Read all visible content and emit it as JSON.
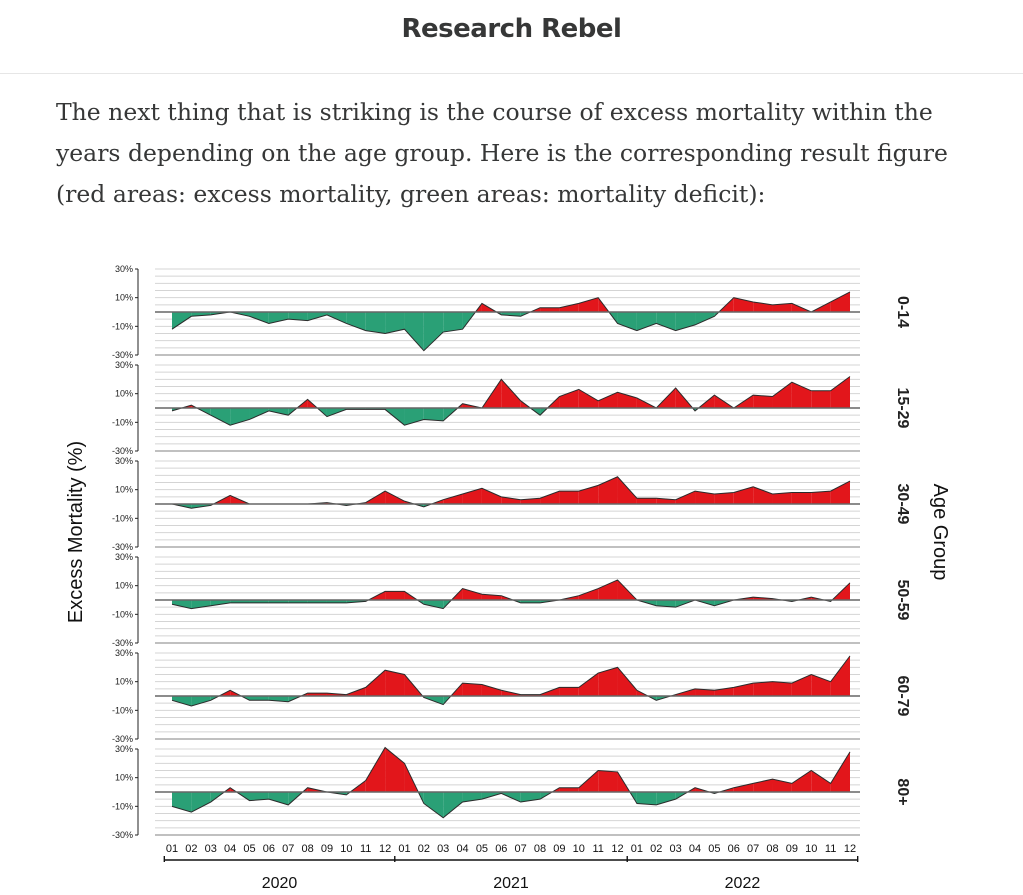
{
  "header": {
    "site_title": "Research Rebel"
  },
  "article": {
    "intro_text": "The next thing that is striking is the course of excess mortality within the years depending on the age group. Here is the corresponding result figure (red areas: excess mortality, green areas: mortality deficit):"
  },
  "colors": {
    "positive": "#e2161b",
    "negative": "#2aa076",
    "grid": "#d4d4d4",
    "baseline": "#666666",
    "axis": "#222222"
  },
  "chart_data": {
    "type": "area",
    "ylabel": "Excess Mortality (%)",
    "y_side_label": "Age Group",
    "y_ticks": [
      30,
      10,
      -10,
      -30
    ],
    "y_tick_labels": [
      "30%",
      "10%",
      "-10%",
      "-30%"
    ],
    "ylim": [
      -30,
      30
    ],
    "grid": true,
    "month_labels": [
      "01",
      "02",
      "03",
      "04",
      "05",
      "06",
      "07",
      "08",
      "09",
      "10",
      "11",
      "12",
      "01",
      "02",
      "03",
      "04",
      "05",
      "06",
      "07",
      "08",
      "09",
      "10",
      "11",
      "12",
      "01",
      "02",
      "03",
      "04",
      "05",
      "06",
      "07",
      "08",
      "09",
      "10",
      "11",
      "12"
    ],
    "years": [
      "2020",
      "2021",
      "2022"
    ],
    "series": [
      {
        "name": "0-14",
        "values": [
          -12,
          -3,
          -2,
          0,
          -3,
          -8,
          -5,
          -6,
          -2,
          -8,
          -13,
          -15,
          -12,
          -27,
          -14,
          -12,
          6,
          -2,
          -3,
          3,
          3,
          6,
          10,
          -8,
          -13,
          -8,
          -13,
          -9,
          -3,
          10,
          7,
          5,
          6,
          0,
          7,
          14
        ]
      },
      {
        "name": "15-29",
        "values": [
          -2,
          2,
          -5,
          -12,
          -8,
          -2,
          -5,
          6,
          -6,
          -1,
          -1,
          -1,
          -12,
          -8,
          -9,
          3,
          0,
          20,
          5,
          -5,
          8,
          13,
          5,
          11,
          7,
          0,
          14,
          -2,
          9,
          0,
          9,
          8,
          18,
          12,
          12,
          22
        ]
      },
      {
        "name": "30-49",
        "values": [
          0,
          -3,
          -1,
          6,
          0,
          0,
          0,
          0,
          1,
          -1,
          1,
          9,
          2,
          -2,
          3,
          7,
          11,
          5,
          3,
          4,
          9,
          9,
          13,
          19,
          4,
          4,
          3,
          9,
          7,
          8,
          12,
          7,
          8,
          8,
          9,
          16
        ]
      },
      {
        "name": "50-59",
        "values": [
          -3,
          -6,
          -4,
          -2,
          -2,
          -2,
          -2,
          -2,
          -2,
          -2,
          -1,
          6,
          6,
          -3,
          -6,
          8,
          4,
          3,
          -2,
          -2,
          0,
          3,
          8,
          14,
          0,
          -4,
          -5,
          0,
          -4,
          0,
          2,
          1,
          -1,
          2,
          -1,
          12
        ]
      },
      {
        "name": "60-79",
        "values": [
          -3,
          -7,
          -3,
          4,
          -3,
          -3,
          -4,
          2,
          2,
          1,
          6,
          18,
          15,
          -1,
          -6,
          9,
          8,
          4,
          1,
          1,
          6,
          6,
          16,
          20,
          4,
          -3,
          1,
          5,
          4,
          6,
          9,
          10,
          9,
          15,
          10,
          28
        ]
      },
      {
        "name": "80+",
        "values": [
          -10,
          -14,
          -7,
          3,
          -6,
          -5,
          -9,
          3,
          0,
          -2,
          8,
          31,
          20,
          -8,
          -18,
          -7,
          -5,
          -1,
          -7,
          -5,
          3,
          3,
          15,
          14,
          -8,
          -9,
          -5,
          3,
          -1,
          3,
          6,
          9,
          6,
          15,
          6,
          28
        ]
      }
    ]
  }
}
